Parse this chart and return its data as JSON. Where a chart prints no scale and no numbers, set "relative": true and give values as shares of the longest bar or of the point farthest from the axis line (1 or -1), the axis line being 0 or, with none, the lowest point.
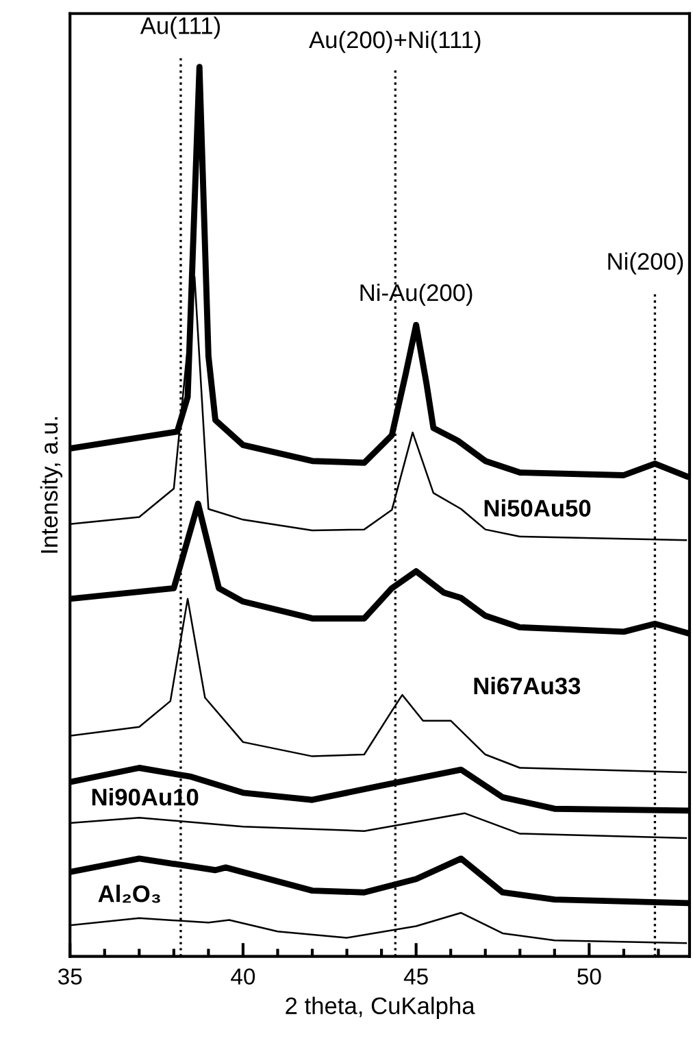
{
  "chart_data": {
    "type": "line",
    "relative": true,
    "xlabel": "2 theta, CuKalpha",
    "ylabel": "Intensity, a.u.",
    "xlim": [
      35,
      52.9
    ],
    "xticks": [
      35,
      {
        "value": 36,
        "label": null
      },
      {
        "value": 37,
        "label": null
      },
      {
        "value": 38,
        "label": null
      },
      {
        "value": 39,
        "label": null
      },
      40,
      {
        "value": 41,
        "label": null
      },
      {
        "value": 42,
        "label": null
      },
      {
        "value": 43,
        "label": null
      },
      {
        "value": 44,
        "label": null
      },
      45,
      {
        "value": 46,
        "label": null
      },
      {
        "value": 47,
        "label": null
      },
      {
        "value": 48,
        "label": null
      },
      {
        "value": 49,
        "label": null
      },
      50,
      {
        "value": 51,
        "label": null
      },
      {
        "value": 52,
        "label": null
      }
    ],
    "grid": false,
    "legend": false,
    "marker": "none",
    "line_style": "solid",
    "series": [
      {
        "color": "#000000",
        "x": [
          35,
          38.1,
          38.4,
          38.74,
          39.0,
          39.2,
          40,
          42,
          43.5,
          44.3,
          44.7,
          45.0,
          45.3,
          45.5,
          46.2,
          47,
          48,
          51,
          51.9,
          52.8
        ],
        "values": [
          0.571,
          0.59,
          0.629,
          1.0,
          0.675,
          0.603,
          0.575,
          0.557,
          0.555,
          0.586,
          0.655,
          0.71,
          0.644,
          0.594,
          0.58,
          0.557,
          0.544,
          0.541,
          0.554,
          0.54
        ]
      },
      {
        "name": "Ni50Au50",
        "color": "#000000",
        "x": [
          35,
          37,
          38,
          38.6,
          39.0,
          40,
          42,
          43.5,
          44.3,
          44.9,
          45.5,
          46.3,
          47,
          48,
          52.8
        ],
        "values": [
          0.486,
          0.494,
          0.526,
          0.764,
          0.503,
          0.491,
          0.479,
          0.48,
          0.502,
          0.589,
          0.521,
          0.503,
          0.48,
          0.472,
          0.468
        ]
      },
      {
        "color": "#000000",
        "x": [
          35,
          38,
          38.7,
          39.3,
          40,
          42,
          43.5,
          44.3,
          45.0,
          45.8,
          46.3,
          47,
          48,
          51,
          51.9,
          52.8
        ],
        "values": [
          0.402,
          0.414,
          0.509,
          0.414,
          0.399,
          0.38,
          0.38,
          0.414,
          0.433,
          0.409,
          0.403,
          0.383,
          0.37,
          0.365,
          0.374,
          0.364
        ]
      },
      {
        "name": "Ni67Au33",
        "color": "#000000",
        "x": [
          35,
          37,
          37.9,
          38.4,
          38.9,
          40,
          42,
          43.5,
          44.3,
          44.6,
          45.2,
          46.0,
          47,
          48,
          52.8
        ],
        "values": [
          0.248,
          0.258,
          0.287,
          0.402,
          0.291,
          0.241,
          0.225,
          0.227,
          0.276,
          0.294,
          0.265,
          0.265,
          0.227,
          0.212,
          0.207
        ]
      },
      {
        "color": "#000000",
        "x": [
          35,
          37,
          38.5,
          40,
          42,
          44,
          46.3,
          47.5,
          49,
          52.8
        ],
        "values": [
          0.196,
          0.212,
          0.202,
          0.184,
          0.176,
          0.192,
          0.21,
          0.179,
          0.166,
          0.164
        ]
      },
      {
        "name": "Ni90Au10",
        "color": "#000000",
        "x": [
          35,
          37,
          40,
          43.5,
          46.4,
          48,
          52.8
        ],
        "values": [
          0.15,
          0.156,
          0.146,
          0.141,
          0.161,
          0.138,
          0.133
        ]
      },
      {
        "color": "#000000",
        "x": [
          35,
          37,
          39.2,
          39.5,
          42,
          43.5,
          45,
          46.3,
          47.5,
          49,
          52.8
        ],
        "values": [
          0.095,
          0.11,
          0.097,
          0.1,
          0.074,
          0.072,
          0.087,
          0.11,
          0.072,
          0.064,
          0.06
        ]
      },
      {
        "name": "Al₂O₃",
        "color": "#000000",
        "x": [
          35,
          37,
          39,
          39.6,
          41,
          43,
          45,
          46.3,
          47.5,
          49,
          52.8
        ],
        "values": [
          0.035,
          0.043,
          0.038,
          0.041,
          0.028,
          0.021,
          0.034,
          0.049,
          0.026,
          0.018,
          0.015
        ]
      }
    ],
    "ref_lines": [
      {
        "axis": "x",
        "value": 38.2,
        "label": "Au(111)",
        "color": "#000000",
        "line_style": "dotted"
      },
      {
        "axis": "x",
        "value": 44.4,
        "label": "Au(200)+Ni(111)",
        "color": "#000000",
        "line_style": "dotted"
      },
      {
        "axis": "x",
        "value": 51.9,
        "label": "Ni(200)",
        "color": "#000000",
        "line_style": "dotted"
      }
    ],
    "annotations": [
      {
        "text": "Ni-Au(200)",
        "x": 45.0,
        "y": 0.71
      }
    ]
  }
}
